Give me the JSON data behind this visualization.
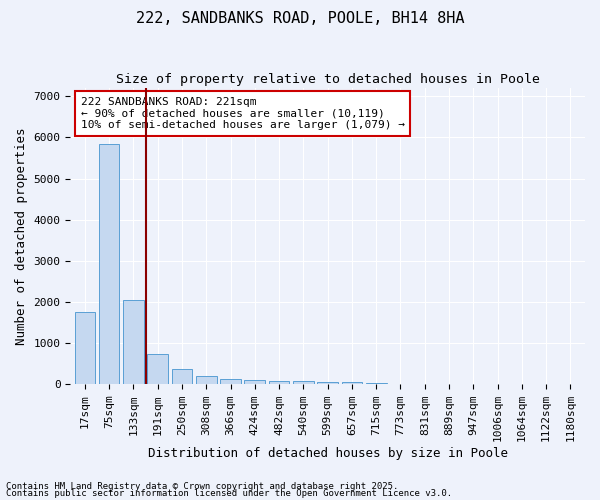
{
  "title1": "222, SANDBANKS ROAD, POOLE, BH14 8HA",
  "title2": "Size of property relative to detached houses in Poole",
  "xlabel": "Distribution of detached houses by size in Poole",
  "ylabel": "Number of detached properties",
  "categories": [
    "17sqm",
    "75sqm",
    "133sqm",
    "191sqm",
    "250sqm",
    "308sqm",
    "366sqm",
    "424sqm",
    "482sqm",
    "540sqm",
    "599sqm",
    "657sqm",
    "715sqm",
    "773sqm",
    "831sqm",
    "889sqm",
    "947sqm",
    "1006sqm",
    "1064sqm",
    "1122sqm",
    "1180sqm"
  ],
  "values": [
    1750,
    5850,
    2050,
    750,
    380,
    210,
    130,
    110,
    90,
    80,
    70,
    50,
    30,
    20,
    10,
    5,
    3,
    2,
    1,
    1,
    0
  ],
  "bar_color": "#c5d8f0",
  "bar_edge_color": "#5a9fd4",
  "vline_color": "#8b0000",
  "vline_x": 2.5,
  "annotation_text": "222 SANDBANKS ROAD: 221sqm\n← 90% of detached houses are smaller (10,119)\n10% of semi-detached houses are larger (1,079) →",
  "annotation_box_color": "#ffffff",
  "annotation_box_edge": "#cc0000",
  "ylim": [
    0,
    7200
  ],
  "yticks": [
    0,
    1000,
    2000,
    3000,
    4000,
    5000,
    6000,
    7000
  ],
  "bg_color": "#eef2fb",
  "grid_color": "#ffffff",
  "footer1": "Contains HM Land Registry data © Crown copyright and database right 2025.",
  "footer2": "Contains public sector information licensed under the Open Government Licence v3.0.",
  "title1_fontsize": 11,
  "title2_fontsize": 9.5,
  "axis_label_fontsize": 9,
  "tick_fontsize": 8,
  "annotation_fontsize": 8,
  "footer_fontsize": 6.5
}
